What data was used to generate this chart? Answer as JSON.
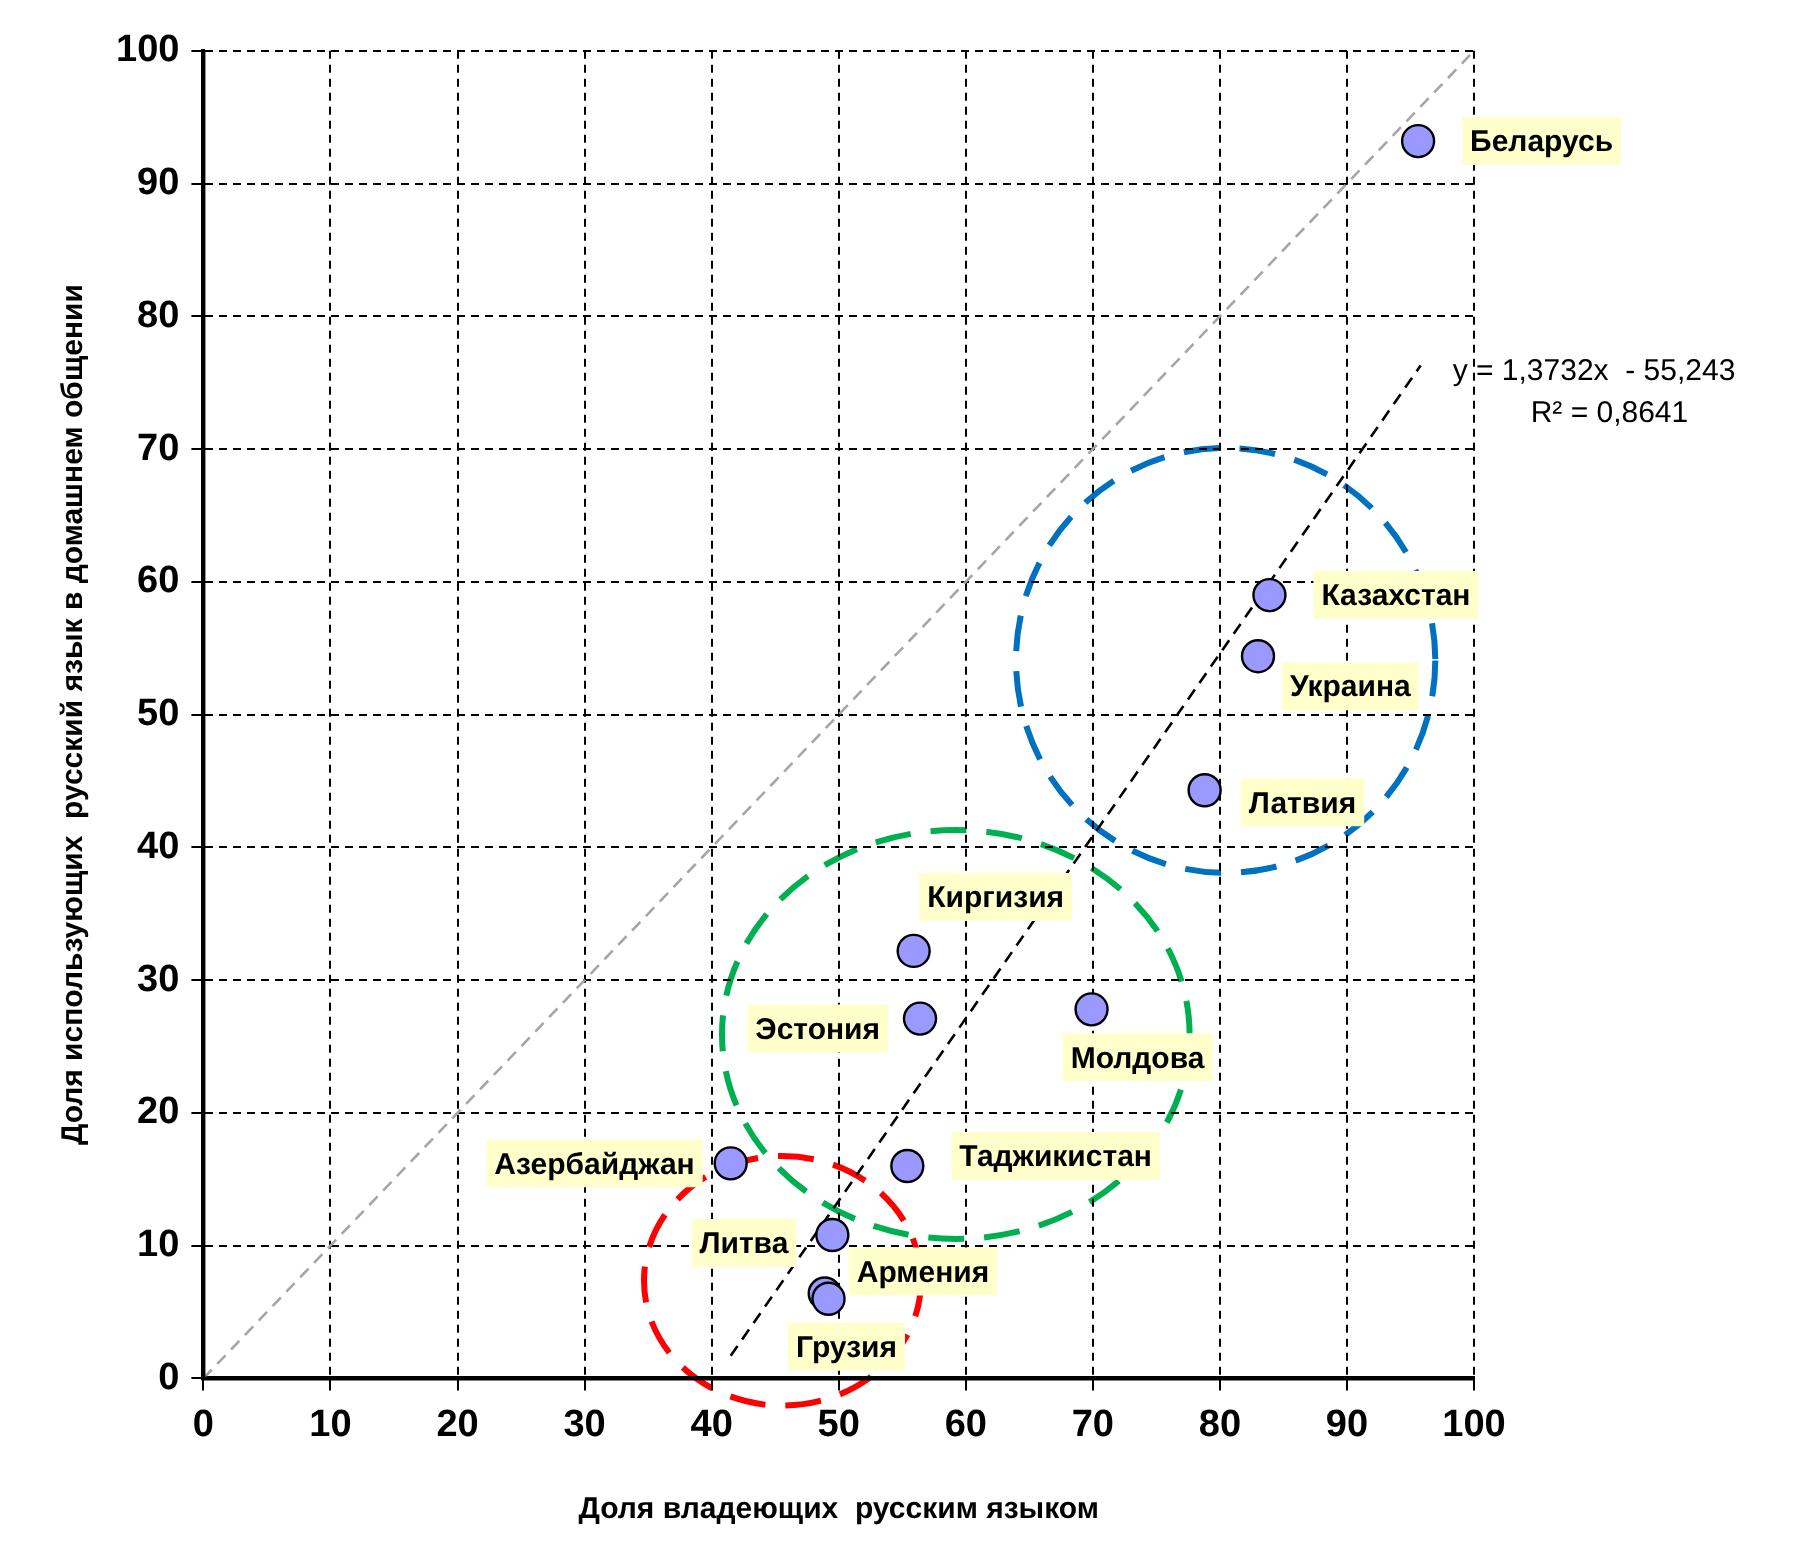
{
  "chart_data": {
    "type": "scatter",
    "xlabel": "Доля владеющих  русским языком",
    "ylabel": "Доля использующих  русский язык в домашнем общении",
    "xlim": [
      0,
      100
    ],
    "xticks": [
      0,
      10,
      20,
      30,
      40,
      50,
      60,
      70,
      80,
      90,
      100
    ],
    "ylim": [
      0,
      100
    ],
    "yticks": [
      0,
      10,
      20,
      30,
      40,
      50,
      60,
      70,
      80,
      90,
      100
    ],
    "grid": true,
    "legend": false,
    "series": [
      {
        "marker": "circle",
        "color": "#9999ff",
        "x": [
          95.6,
          83.9,
          83.0,
          78.8,
          55.9,
          56.4,
          69.9,
          55.4,
          41.5,
          49.5,
          48.9,
          49.2
        ],
        "values": [
          93.2,
          59.0,
          54.4,
          44.3,
          32.2,
          27.1,
          27.8,
          16.0,
          16.2,
          10.8,
          6.4,
          6.0
        ]
      },
      {
        "type": "line",
        "marker": "none",
        "color": "#000000",
        "line_style": "dashed",
        "x": [
          41.5,
          95.8
        ],
        "values": [
          1.7,
          76.3
        ]
      },
      {
        "type": "line",
        "marker": "none",
        "color": "#a6a6a6",
        "line_style": "dashed",
        "x": [
          0,
          100
        ],
        "values": [
          0,
          100
        ]
      }
    ],
    "annotations": [
      {
        "text": "Беларусь",
        "x": 95.6,
        "y": 93.2
      },
      {
        "text": "Казахстан",
        "x": 83.9,
        "y": 59.0
      },
      {
        "text": "Украина",
        "x": 83.0,
        "y": 54.4
      },
      {
        "text": "Латвия",
        "x": 78.8,
        "y": 44.3
      },
      {
        "text": "Киргизия",
        "x": 55.9,
        "y": 32.2
      },
      {
        "text": "Эстония",
        "x": 56.4,
        "y": 27.1
      },
      {
        "text": "Молдова",
        "x": 69.9,
        "y": 27.8
      },
      {
        "text": "Таджикистан",
        "x": 55.4,
        "y": 16.0
      },
      {
        "text": "Азербайджан",
        "x": 41.5,
        "y": 16.2
      },
      {
        "text": "Литва",
        "x": 49.5,
        "y": 10.8
      },
      {
        "text": "Армения",
        "x": 48.9,
        "y": 6.4
      },
      {
        "text": "Грузия",
        "x": 49.2,
        "y": 6.0
      },
      "y = 1,3732x  - 55,243",
      "R² = 0,8641"
    ]
  }
}
